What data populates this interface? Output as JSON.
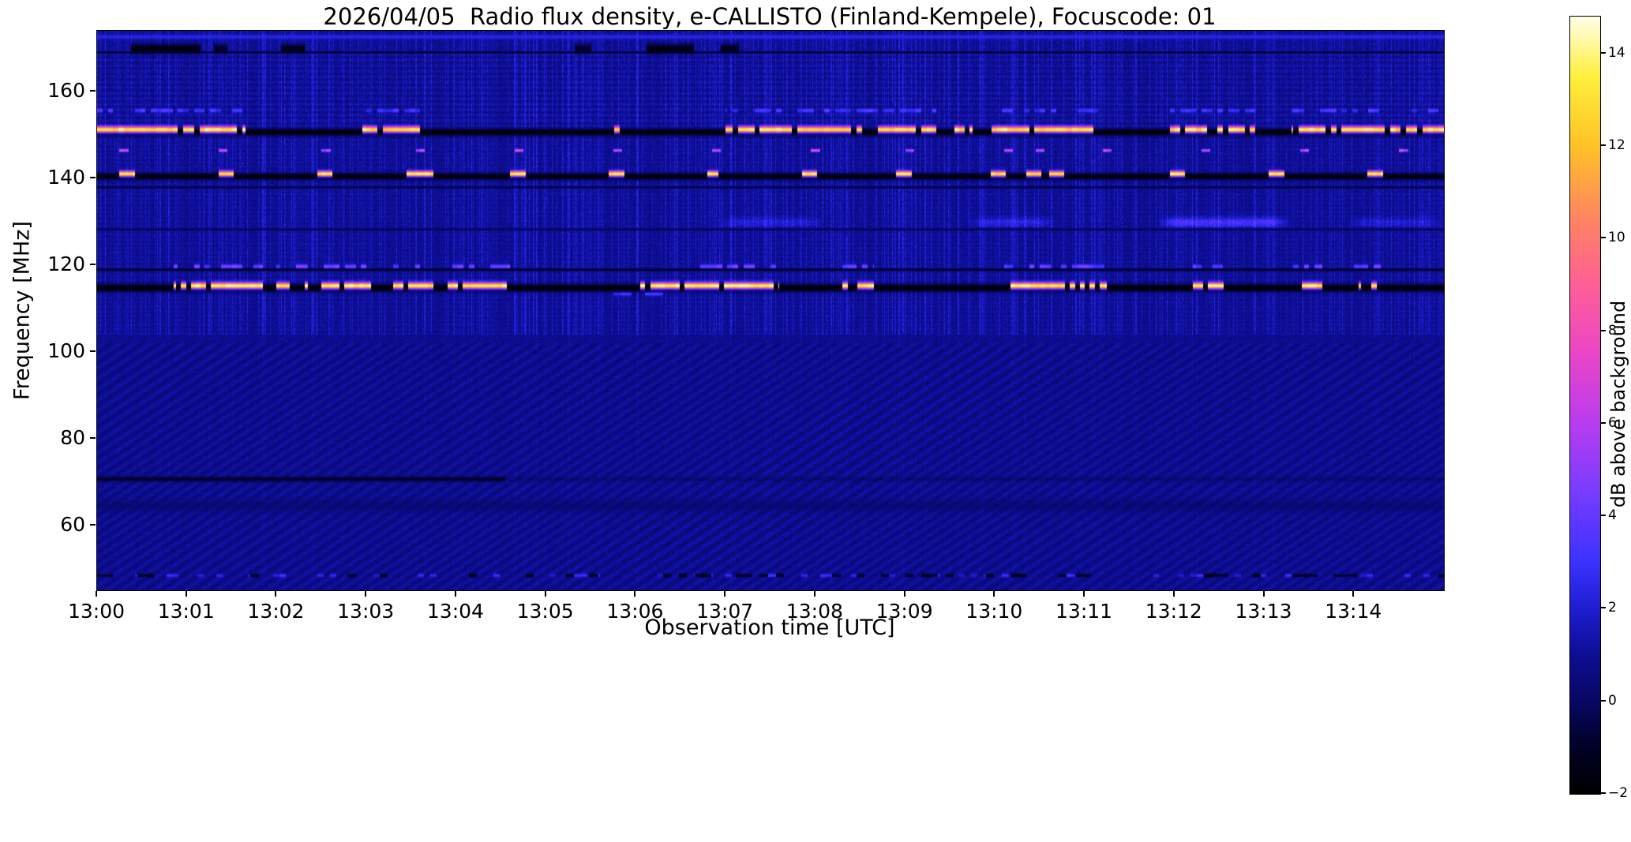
{
  "chart_data": {
    "type": "heatmap",
    "title": "2026/04/05  Radio flux density, e-CALLISTO (Finland-Kempele), Focuscode: 01",
    "xlabel": "Observation time [UTC]",
    "ylabel": "Frequency [MHz]",
    "colorbar_label": "dB above background",
    "x_tick_labels": [
      "13:00",
      "13:01",
      "13:02",
      "13:03",
      "13:04",
      "13:05",
      "13:06",
      "13:07",
      "13:08",
      "13:09",
      "13:10",
      "13:11",
      "13:12",
      "13:13",
      "13:14"
    ],
    "y_tick_values": [
      160,
      140,
      120,
      100,
      80,
      60
    ],
    "colorbar_tick_values": [
      -2,
      0,
      2,
      4,
      6,
      8,
      10,
      12,
      14
    ],
    "colorbar_tick_labels": [
      "−2",
      "0",
      "2",
      "4",
      "6",
      "8",
      "10",
      "12",
      "14"
    ],
    "time_start_utc": "13:00",
    "time_span_minutes": 15,
    "freq_range_mhz": [
      45,
      174
    ],
    "value_range_db": [
      -2,
      14.8
    ],
    "background_level_db": 0.8,
    "grid": false,
    "colormap_stops": [
      [
        -2.0,
        "#000000"
      ],
      [
        -1.0,
        "#020228"
      ],
      [
        0.0,
        "#080864"
      ],
      [
        1.0,
        "#0e0e96"
      ],
      [
        2.0,
        "#1e1ed2"
      ],
      [
        3.0,
        "#3c32ff"
      ],
      [
        4.5,
        "#783cff"
      ],
      [
        6.0,
        "#b93cf0"
      ],
      [
        7.5,
        "#eb46c8"
      ],
      [
        9.0,
        "#ff5f96"
      ],
      [
        10.5,
        "#ff875f"
      ],
      [
        12.0,
        "#ffc328"
      ],
      [
        13.5,
        "#fff03c"
      ],
      [
        14.8,
        "#ffffeb"
      ]
    ],
    "bands": [
      {
        "name": "top-edge-bright-line",
        "kind": "line",
        "f0": 172.6,
        "hw": 0.5,
        "level": 2.4
      },
      {
        "name": "band-169-dark-line",
        "kind": "line",
        "f0": 169.0,
        "hw": 0.25,
        "level": -0.9
      },
      {
        "name": "band-170-dark-blobs",
        "kind": "line",
        "f0": 169.9,
        "hw": 1.0,
        "level": -1.7,
        "intervals": [
          [
            0.38,
            1.15,
            1
          ],
          [
            1.3,
            1.45,
            0.8
          ],
          [
            2.05,
            2.32,
            0.9
          ],
          [
            5.32,
            5.5,
            0.8
          ],
          [
            6.12,
            6.65,
            1
          ],
          [
            6.95,
            7.15,
            0.9
          ]
        ]
      },
      {
        "name": "band-155-blue-dashes",
        "kind": "bursts",
        "f0": 155.6,
        "hw": 0.45,
        "level": 3.4,
        "seg": 0.06,
        "jitter": 0.8,
        "intervals": [
          [
            0,
            1.65,
            0.6
          ],
          [
            2.95,
            3.6,
            0.6
          ],
          [
            7.0,
            9.35,
            0.65
          ],
          [
            9.95,
            11.15,
            0.65
          ],
          [
            11.95,
            12.95,
            0.6
          ],
          [
            13.3,
            15,
            0.6
          ]
        ]
      },
      {
        "name": "band-151-black-line",
        "kind": "line",
        "f0": 150.6,
        "hw": 0.8,
        "level": -1.9
      },
      {
        "name": "band-151-bursts",
        "kind": "bursts",
        "f0": 151.2,
        "hw": 0.75,
        "level": 13.8,
        "seg": 0.06,
        "jitter": 1.2,
        "intervals": [
          [
            0,
            1.65,
            0.8
          ],
          [
            2.95,
            3.6,
            0.8
          ],
          [
            4.2,
            6.9,
            0.18
          ],
          [
            7.0,
            9.35,
            0.8
          ],
          [
            9.55,
            9.75,
            0.7
          ],
          [
            9.95,
            11.15,
            0.8
          ],
          [
            11.95,
            12.95,
            0.7
          ],
          [
            13.3,
            15,
            0.75
          ]
        ]
      },
      {
        "name": "band-146-dots",
        "kind": "bursts",
        "f0": 146.4,
        "hw": 0.3,
        "level": 7.5,
        "seg": 0.05,
        "jitter": 1.5,
        "intervals": [
          [
            0.25,
            0.35,
            1
          ],
          [
            1.35,
            1.45,
            1
          ],
          [
            2.5,
            2.6,
            1
          ],
          [
            3.55,
            3.65,
            1
          ],
          [
            4.65,
            4.75,
            1
          ],
          [
            5.75,
            5.85,
            1
          ],
          [
            6.85,
            6.95,
            1
          ],
          [
            7.95,
            8.05,
            1
          ],
          [
            9.0,
            9.1,
            1
          ],
          [
            10.1,
            10.2,
            1
          ],
          [
            10.45,
            10.55,
            1
          ],
          [
            11.2,
            11.3,
            1
          ],
          [
            12.3,
            12.4,
            1
          ],
          [
            13.4,
            13.5,
            1
          ],
          [
            14.5,
            14.6,
            1
          ]
        ]
      },
      {
        "name": "band-140-black-line",
        "kind": "line",
        "f0": 140.4,
        "hw": 0.75,
        "level": -1.9
      },
      {
        "name": "band-141-bursts",
        "kind": "bursts",
        "f0": 141.0,
        "hw": 0.65,
        "level": 14.2,
        "seg": 0.05,
        "jitter": 0.8,
        "intervals": [
          [
            0.25,
            0.42,
            1
          ],
          [
            1.35,
            1.52,
            1
          ],
          [
            2.45,
            2.62,
            1
          ],
          [
            3.45,
            3.75,
            1
          ],
          [
            4.6,
            4.77,
            1
          ],
          [
            5.7,
            5.87,
            1
          ],
          [
            6.8,
            6.92,
            1
          ],
          [
            7.85,
            8.02,
            1
          ],
          [
            8.9,
            9.07,
            1
          ],
          [
            9.95,
            10.12,
            1
          ],
          [
            10.35,
            10.52,
            1
          ],
          [
            10.6,
            10.77,
            1
          ],
          [
            11.95,
            12.12,
            1
          ],
          [
            13.05,
            13.22,
            1
          ],
          [
            14.15,
            14.32,
            1
          ]
        ]
      },
      {
        "name": "band-138-faint-dark-line",
        "kind": "line",
        "f0": 137.9,
        "hw": 0.3,
        "level": -0.5
      },
      {
        "name": "band-130-diffuse-patches",
        "kind": "patch",
        "f0": 129.8,
        "hw": 1.1,
        "intervals": [
          [
            6.9,
            8.1,
            0.9
          ],
          [
            9.7,
            10.7,
            1.1
          ],
          [
            11.8,
            13.3,
            1.9
          ],
          [
            13.9,
            15,
            0.8
          ]
        ]
      },
      {
        "name": "band-128-faint-dark-line",
        "kind": "line",
        "f0": 128.2,
        "hw": 0.25,
        "level": -0.4
      },
      {
        "name": "band-119-blue-dashes",
        "kind": "bursts",
        "f0": 119.6,
        "hw": 0.5,
        "level": 4.4,
        "seg": 0.06,
        "jitter": 1.2,
        "intervals": [
          [
            0.85,
            1.85,
            0.5
          ],
          [
            2.0,
            2.35,
            0.5
          ],
          [
            2.5,
            3.05,
            0.5
          ],
          [
            3.3,
            3.75,
            0.5
          ],
          [
            3.9,
            4.6,
            0.5
          ],
          [
            6.6,
            7.6,
            0.55
          ],
          [
            8.3,
            8.65,
            0.6
          ],
          [
            10.1,
            11.25,
            0.55
          ],
          [
            12.2,
            12.55,
            0.6
          ],
          [
            13.3,
            13.65,
            0.6
          ],
          [
            14.0,
            14.3,
            0.45
          ]
        ]
      },
      {
        "name": "band-119-dark-line",
        "kind": "line",
        "f0": 118.9,
        "hw": 0.3,
        "level": -1.2
      },
      {
        "name": "band-115-black-line",
        "kind": "line",
        "f0": 114.7,
        "hw": 0.85,
        "level": -2.0
      },
      {
        "name": "band-115-bursts",
        "kind": "bursts",
        "f0": 115.2,
        "hw": 0.75,
        "level": 14.4,
        "seg": 0.055,
        "jitter": 0.9,
        "intervals": [
          [
            0.85,
            1.85,
            0.8
          ],
          [
            2.0,
            2.35,
            0.75
          ],
          [
            2.5,
            3.05,
            0.8
          ],
          [
            3.3,
            3.75,
            0.75
          ],
          [
            3.9,
            4.6,
            0.8
          ],
          [
            6.0,
            7.6,
            0.8
          ],
          [
            8.3,
            8.65,
            0.85
          ],
          [
            10.1,
            11.25,
            0.82
          ],
          [
            12.2,
            12.55,
            0.8
          ],
          [
            13.3,
            13.65,
            0.8
          ],
          [
            14.05,
            14.25,
            0.6
          ]
        ]
      },
      {
        "name": "band-113-blue-dashes",
        "kind": "bursts",
        "f0": 113.3,
        "hw": 0.4,
        "level": 3.2,
        "seg": 0.08,
        "jitter": 0.5,
        "intervals": [
          [
            5.75,
            5.95,
            0.9
          ],
          [
            6.1,
            6.3,
            0.9
          ]
        ]
      },
      {
        "name": "band-70-dark-drift-line",
        "kind": "line",
        "f0": 70.6,
        "hw": 0.55,
        "level": -1.1,
        "intervals": [
          [
            0,
            4.55,
            1
          ],
          [
            4.55,
            15,
            0.3
          ]
        ]
      },
      {
        "name": "band-64-dark-band",
        "kind": "line",
        "f0": 64.5,
        "hw": 1.3,
        "level": -0.2,
        "intervals": [
          [
            0,
            15,
            0.5
          ]
        ]
      },
      {
        "name": "band-48-bright-stipple",
        "kind": "bursts",
        "f0": 48.4,
        "hw": 0.4,
        "level": 2.6,
        "seg": 0.07,
        "jitter": 0.8,
        "intervals": [
          [
            0,
            15,
            0.3
          ]
        ]
      },
      {
        "name": "band-48-dark-stipple",
        "kind": "bursts",
        "f0": 48.4,
        "hw": 0.4,
        "level": -1.4,
        "seg": 0.09,
        "jitter": 0.4,
        "intervals": [
          [
            0,
            15,
            0.22
          ]
        ]
      }
    ]
  }
}
